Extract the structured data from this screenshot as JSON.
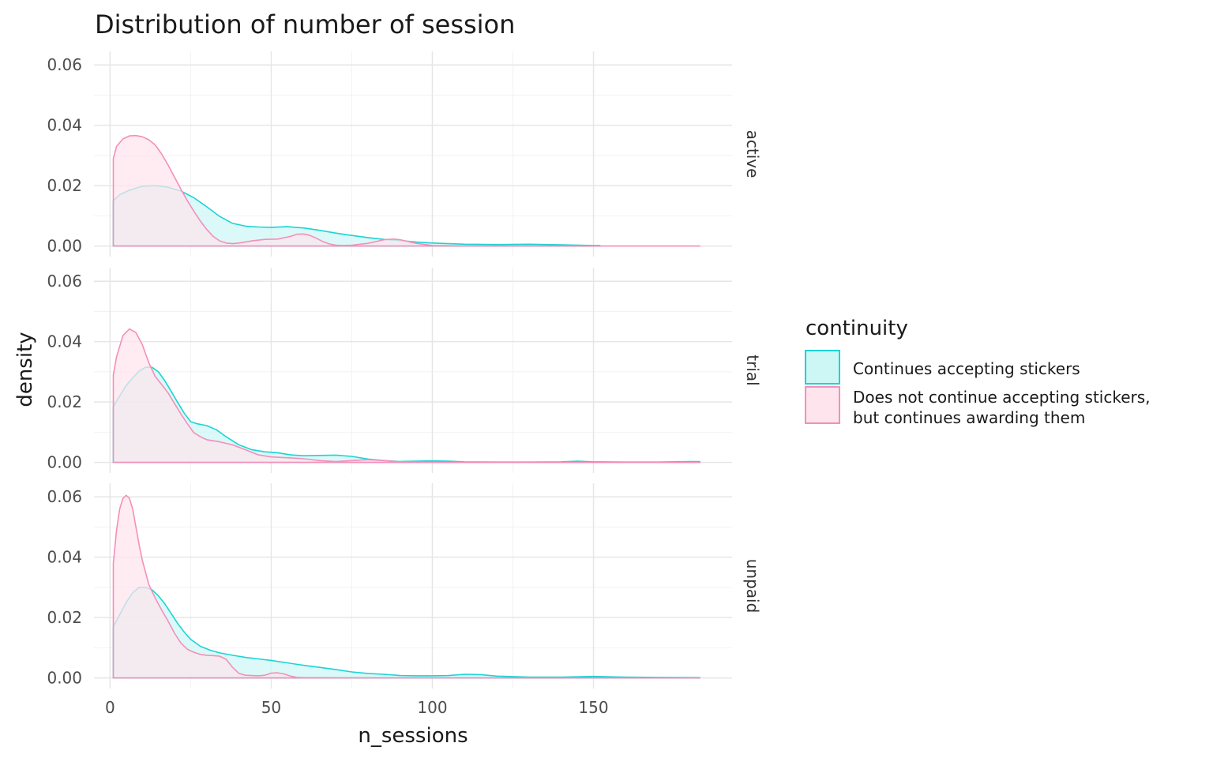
{
  "chart_data": {
    "type": "area",
    "title": "Distribution of number of session",
    "xlabel": "n_sessions",
    "ylabel": "density",
    "xlim": [
      -5,
      193
    ],
    "ylim": [
      -0.0035,
      0.0645
    ],
    "x_ticks": [
      0,
      50,
      100,
      150
    ],
    "x_tick_labels": [
      "0",
      "50",
      "100",
      "150"
    ],
    "y_ticks": [
      0,
      0.02,
      0.04,
      0.06
    ],
    "y_tick_labels": [
      "0.00",
      "0.02",
      "0.04",
      "0.06"
    ],
    "grid": true,
    "legend": {
      "title": "continuity",
      "position": "right",
      "entries": [
        {
          "lines": [
            "Continues accepting stickers"
          ]
        },
        {
          "lines": [
            "Does not continue accepting stickers,",
            "but continues awarding them"
          ]
        }
      ]
    },
    "colors": {
      "continues_line": "#1ed3d3",
      "continues_fill": "#cdf7f5",
      "not_continue_line": "#f48fb8",
      "not_continue_fill": "#fde4ed"
    },
    "panels": [
      {
        "facet": "active",
        "series": [
          {
            "name": "Continues accepting stickers",
            "x": [
              1,
              3,
              6,
              10,
              14,
              18,
              22,
              26,
              30,
              34,
              38,
              42,
              46,
              50,
              55,
              60,
              65,
              70,
              75,
              80,
              85,
              90,
              95,
              100,
              110,
              120,
              130,
              140,
              150,
              152
            ],
            "y": [
              0.015,
              0.017,
              0.0185,
              0.0198,
              0.02,
              0.0195,
              0.0182,
              0.016,
              0.013,
              0.0098,
              0.0075,
              0.0066,
              0.0063,
              0.0062,
              0.0064,
              0.006,
              0.0052,
              0.0043,
              0.0035,
              0.0028,
              0.0022,
              0.0018,
              0.0013,
              0.001,
              0.0006,
              0.0005,
              0.0006,
              0.0004,
              0.0002,
              0.0002
            ]
          },
          {
            "name": "Does not continue accepting stickers, but continues awarding them",
            "x": [
              1,
              2,
              4,
              6,
              8,
              10,
              12,
              14,
              16,
              18,
              20,
              22,
              24,
              26,
              28,
              30,
              32,
              34,
              36,
              38,
              40,
              44,
              48,
              52,
              56,
              58,
              60,
              62,
              64,
              66,
              68,
              70,
              72,
              75,
              80,
              85,
              88,
              90,
              95,
              100,
              105,
              110,
              120,
              140,
              160,
              183
            ],
            "y": [
              0.029,
              0.033,
              0.0355,
              0.0365,
              0.0366,
              0.0362,
              0.0352,
              0.0335,
              0.0305,
              0.0268,
              0.0228,
              0.0188,
              0.015,
              0.0115,
              0.0083,
              0.0055,
              0.0032,
              0.0017,
              0.001,
              0.0008,
              0.001,
              0.0017,
              0.0022,
              0.0023,
              0.0032,
              0.0039,
              0.004,
              0.0035,
              0.0026,
              0.0015,
              0.0007,
              0.0003,
              0.0002,
              0.0003,
              0.0009,
              0.0021,
              0.0023,
              0.0021,
              0.0009,
              0.0002,
              0.0001,
              0.0,
              0.0,
              0.0,
              0.0,
              0.0
            ]
          }
        ]
      },
      {
        "facet": "trial",
        "series": [
          {
            "name": "Continues accepting stickers",
            "x": [
              1,
              3,
              5,
              7,
              9,
              11,
              13,
              15,
              17,
              19,
              21,
              23,
              25,
              27,
              30,
              33,
              36,
              40,
              44,
              48,
              52,
              56,
              60,
              65,
              70,
              75,
              80,
              85,
              90,
              95,
              100,
              105,
              110,
              120,
              130,
              140,
              145,
              150,
              160,
              170,
              180,
              183
            ],
            "y": [
              0.0185,
              0.022,
              0.0255,
              0.028,
              0.0302,
              0.0315,
              0.0315,
              0.03,
              0.027,
              0.0235,
              0.0198,
              0.0163,
              0.0135,
              0.0128,
              0.0122,
              0.0108,
              0.0085,
              0.0058,
              0.0042,
              0.0035,
              0.0032,
              0.0025,
              0.0022,
              0.0023,
              0.0024,
              0.002,
              0.0011,
              0.0006,
              0.0003,
              0.0004,
              0.0005,
              0.0004,
              0.0002,
              0.0001,
              0.0001,
              0.0002,
              0.0004,
              0.0002,
              0.0001,
              0.0001,
              0.0003,
              0.0003
            ]
          },
          {
            "name": "Does not continue accepting stickers, but continues awarding them",
            "x": [
              1,
              2,
              4,
              6,
              8,
              10,
              12,
              14,
              16,
              18,
              20,
              22,
              24,
              26,
              28,
              30,
              34,
              38,
              42,
              46,
              50,
              56,
              60,
              65,
              70,
              75,
              80,
              85,
              90,
              95,
              100,
              110,
              120,
              140,
              160,
              183
            ],
            "y": [
              0.029,
              0.035,
              0.042,
              0.0442,
              0.043,
              0.039,
              0.033,
              0.0285,
              0.0258,
              0.023,
              0.0195,
              0.016,
              0.0128,
              0.0098,
              0.0085,
              0.0075,
              0.0068,
              0.0058,
              0.0042,
              0.0025,
              0.0018,
              0.0015,
              0.0012,
              0.0006,
              0.0003,
              0.0006,
              0.0009,
              0.0006,
              0.0002,
              0.0001,
              0.0,
              0.0,
              0.0,
              0.0,
              0.0,
              0.0
            ]
          }
        ]
      },
      {
        "facet": "unpaid",
        "series": [
          {
            "name": "Continues accepting stickers",
            "x": [
              1,
              3,
              5,
              7,
              9,
              11,
              13,
              15,
              17,
              19,
              21,
              23,
              25,
              28,
              31,
              34,
              38,
              42,
              46,
              50,
              55,
              60,
              65,
              70,
              75,
              80,
              85,
              90,
              95,
              100,
              105,
              110,
              115,
              120,
              130,
              140,
              150,
              160,
              170,
              183
            ],
            "y": [
              0.017,
              0.021,
              0.025,
              0.0282,
              0.03,
              0.03,
              0.0292,
              0.0272,
              0.0245,
              0.0213,
              0.018,
              0.0152,
              0.0128,
              0.0105,
              0.0092,
              0.0083,
              0.0075,
              0.0068,
              0.0063,
              0.0058,
              0.005,
              0.0042,
              0.0035,
              0.0028,
              0.002,
              0.0015,
              0.0012,
              0.0008,
              0.0007,
              0.0007,
              0.0008,
              0.0012,
              0.0011,
              0.0006,
              0.0003,
              0.0003,
              0.0005,
              0.0003,
              0.0002,
              0.0001
            ]
          },
          {
            "name": "Does not continue accepting stickers, but continues awarding them",
            "x": [
              1,
              2,
              3,
              4,
              5,
              6,
              7,
              8,
              9,
              10,
              11,
              12,
              14,
              16,
              18,
              20,
              22,
              24,
              26,
              28,
              30,
              32,
              34,
              36,
              38,
              40,
              42,
              44,
              46,
              48,
              50,
              52,
              54,
              56,
              58,
              60,
              70,
              80,
              100,
              183
            ],
            "y": [
              0.038,
              0.049,
              0.056,
              0.0595,
              0.0605,
              0.0595,
              0.056,
              0.05,
              0.0442,
              0.039,
              0.035,
              0.031,
              0.0265,
              0.0225,
              0.0188,
              0.0148,
              0.0115,
              0.0095,
              0.0085,
              0.0078,
              0.0075,
              0.0074,
              0.0072,
              0.0062,
              0.0035,
              0.0015,
              0.0009,
              0.0008,
              0.0007,
              0.0009,
              0.0016,
              0.0017,
              0.0013,
              0.0006,
              0.0002,
              0.0001,
              0.0,
              0.0,
              0.0,
              0.0
            ]
          }
        ]
      }
    ]
  }
}
